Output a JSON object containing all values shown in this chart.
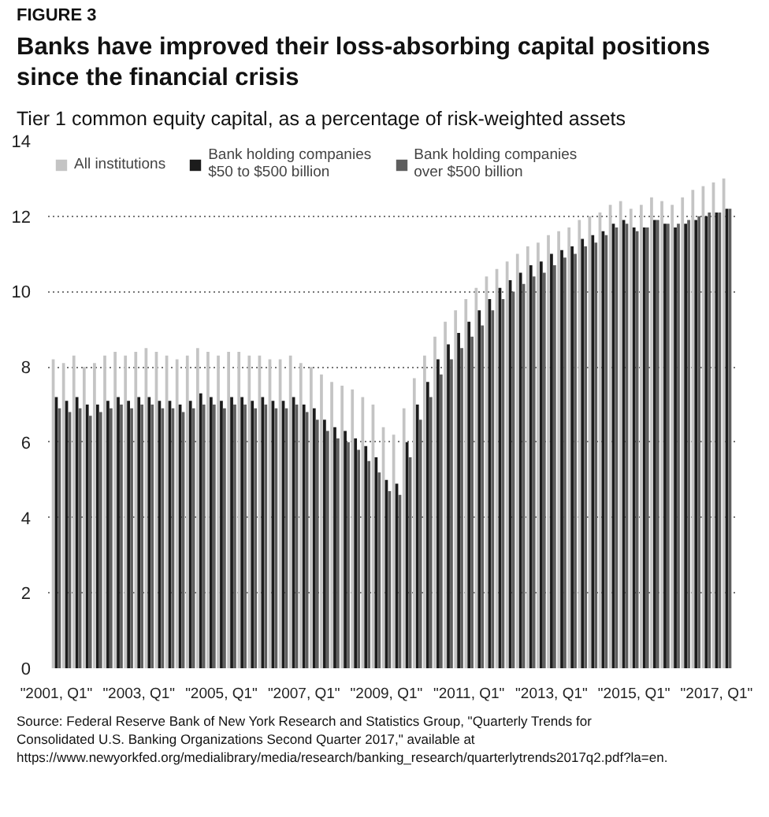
{
  "chart_data": {
    "type": "bar",
    "title": "Banks have improved their loss-absorbing capital positions since the financial crisis",
    "subtitle": "Tier 1 common equity capital, as a percentage of risk-weighted assets",
    "annotations": [
      "FIGURE 3",
      "Source: Federal Reserve Bank of New York Research and Statistics Group, \"Quarterly Trends for Consolidated U.S. Banking Organizations Second Quarter 2017,\" available at https://www.newyorkfed.org/medialibrary/media/research/banking_research/quarterlytrends2017q2.pdf?la=en."
    ],
    "categories": [
      "\"2001, Q1\"",
      null,
      null,
      null,
      null,
      null,
      null,
      null,
      "\"2003, Q1\"",
      null,
      null,
      null,
      null,
      null,
      null,
      null,
      "\"2005, Q1\"",
      null,
      null,
      null,
      null,
      null,
      null,
      null,
      "\"2007, Q1\"",
      null,
      null,
      null,
      null,
      null,
      null,
      null,
      "\"2009, Q1\"",
      null,
      null,
      null,
      null,
      null,
      null,
      null,
      "\"2011, Q1\"",
      null,
      null,
      null,
      null,
      null,
      null,
      null,
      "\"2013, Q1\"",
      null,
      null,
      null,
      null,
      null,
      null,
      null,
      "\"2015, Q1\"",
      null,
      null,
      null,
      null,
      null,
      null,
      null,
      "\"2017, Q1\"",
      null
    ],
    "series": [
      {
        "name": "All institutions",
        "color": "#c4c4c4",
        "values": [
          8.2,
          8.1,
          8.3,
          8.0,
          8.1,
          8.3,
          8.4,
          8.3,
          8.4,
          8.5,
          8.4,
          8.3,
          8.2,
          8.3,
          8.5,
          8.4,
          8.3,
          8.4,
          8.4,
          8.3,
          8.3,
          8.2,
          8.2,
          8.3,
          8.1,
          8.0,
          7.8,
          7.6,
          7.5,
          7.4,
          7.2,
          7.0,
          6.4,
          6.2,
          6.9,
          7.7,
          8.3,
          8.8,
          9.2,
          9.5,
          9.8,
          10.1,
          10.4,
          10.6,
          10.8,
          11.0,
          11.2,
          11.3,
          11.5,
          11.6,
          11.7,
          11.9,
          12.0,
          12.1,
          12.3,
          12.4,
          12.2,
          12.3,
          12.5,
          12.4,
          12.3,
          12.5,
          12.7,
          12.8,
          12.9,
          13.0
        ]
      },
      {
        "name": "Bank holding companies $50 to $500 billion",
        "color": "#1c1c1c",
        "values": [
          7.2,
          7.1,
          7.2,
          7.0,
          7.0,
          7.1,
          7.2,
          7.1,
          7.2,
          7.2,
          7.1,
          7.1,
          7.0,
          7.1,
          7.3,
          7.2,
          7.1,
          7.2,
          7.2,
          7.1,
          7.2,
          7.1,
          7.1,
          7.2,
          7.0,
          6.9,
          6.6,
          6.4,
          6.3,
          6.1,
          5.9,
          5.6,
          5.0,
          4.9,
          6.0,
          7.0,
          7.6,
          8.2,
          8.6,
          8.9,
          9.2,
          9.5,
          9.8,
          10.1,
          10.3,
          10.5,
          10.7,
          10.8,
          11.0,
          11.1,
          11.2,
          11.4,
          11.5,
          11.6,
          11.8,
          11.9,
          11.7,
          11.7,
          11.9,
          11.8,
          11.7,
          11.8,
          11.9,
          12.0,
          12.1,
          12.2
        ]
      },
      {
        "name": "Bank holding companies over $500 billion",
        "color": "#5e5e5e",
        "values": [
          6.9,
          6.8,
          6.9,
          6.7,
          6.8,
          6.9,
          7.0,
          6.9,
          7.0,
          7.0,
          6.9,
          6.9,
          6.8,
          6.9,
          7.0,
          7.0,
          6.9,
          7.0,
          7.0,
          6.9,
          7.0,
          6.9,
          6.9,
          7.0,
          6.8,
          6.6,
          6.3,
          6.1,
          6.0,
          5.8,
          5.5,
          5.2,
          4.7,
          4.6,
          5.6,
          6.6,
          7.2,
          7.8,
          8.2,
          8.5,
          8.8,
          9.1,
          9.5,
          9.8,
          10.0,
          10.2,
          10.4,
          10.5,
          10.7,
          10.9,
          11.0,
          11.2,
          11.3,
          11.5,
          11.7,
          11.8,
          11.6,
          11.7,
          11.9,
          11.8,
          11.8,
          11.9,
          12.0,
          12.1,
          12.1,
          12.2
        ]
      }
    ],
    "ylim": [
      0,
      14
    ],
    "yticks": [
      0,
      2,
      4,
      6,
      8,
      10,
      12,
      14
    ],
    "grid": "y",
    "legend": "top"
  }
}
